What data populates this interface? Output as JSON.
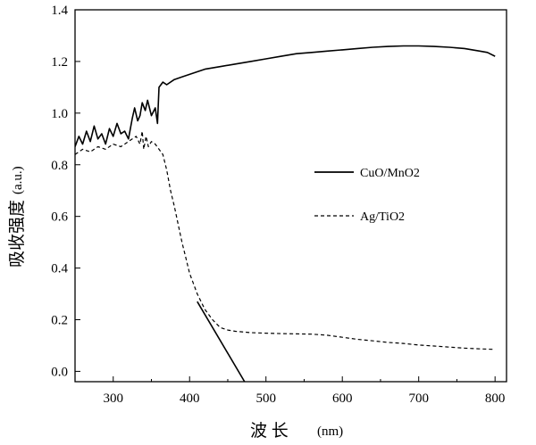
{
  "chart_data": {
    "type": "line",
    "xlabel": "波 长",
    "xlabel_unit": "(nm)",
    "ylabel": "吸收强度",
    "ylabel_unit": "(a.u.)",
    "xlim": [
      250,
      815
    ],
    "ylim": [
      -0.04,
      1.4
    ],
    "xticks": [
      300,
      400,
      500,
      600,
      700,
      800
    ],
    "yticks": [
      "0.0",
      "0.2",
      "0.4",
      "0.6",
      "0.8",
      "1.0",
      "1.2",
      "1.4"
    ],
    "grid": false,
    "legend_position": "right-middle",
    "series": [
      {
        "name": "CuO/MnO2",
        "line_style": "solid",
        "color": "#000000",
        "x": [
          250,
          255,
          260,
          265,
          270,
          275,
          280,
          285,
          290,
          295,
          300,
          305,
          310,
          315,
          320,
          325,
          328,
          332,
          335,
          338,
          342,
          345,
          350,
          355,
          358,
          360,
          365,
          370,
          380,
          390,
          400,
          420,
          440,
          460,
          480,
          500,
          520,
          540,
          560,
          580,
          600,
          620,
          640,
          660,
          680,
          700,
          720,
          740,
          760,
          780,
          790,
          800
        ],
        "y": [
          0.87,
          0.91,
          0.88,
          0.93,
          0.89,
          0.95,
          0.9,
          0.92,
          0.88,
          0.94,
          0.91,
          0.96,
          0.92,
          0.93,
          0.9,
          0.98,
          1.02,
          0.97,
          0.99,
          1.04,
          1.01,
          1.05,
          0.99,
          1.02,
          0.96,
          1.1,
          1.12,
          1.11,
          1.13,
          1.14,
          1.15,
          1.17,
          1.18,
          1.19,
          1.2,
          1.21,
          1.22,
          1.23,
          1.235,
          1.24,
          1.245,
          1.25,
          1.255,
          1.258,
          1.26,
          1.26,
          1.258,
          1.255,
          1.25,
          1.24,
          1.235,
          1.22
        ]
      },
      {
        "name": "Ag/TiO2",
        "line_style": "dashed",
        "color": "#000000",
        "x": [
          250,
          260,
          270,
          280,
          290,
          300,
          310,
          320,
          325,
          330,
          335,
          338,
          340,
          343,
          346,
          350,
          355,
          360,
          365,
          370,
          375,
          380,
          385,
          390,
          395,
          400,
          410,
          420,
          430,
          440,
          450,
          460,
          480,
          500,
          520,
          540,
          560,
          580,
          600,
          620,
          640,
          660,
          680,
          700,
          720,
          740,
          760,
          780,
          800
        ],
        "y": [
          0.84,
          0.86,
          0.85,
          0.87,
          0.86,
          0.88,
          0.87,
          0.89,
          0.9,
          0.91,
          0.88,
          0.93,
          0.86,
          0.91,
          0.87,
          0.89,
          0.88,
          0.86,
          0.84,
          0.78,
          0.7,
          0.64,
          0.57,
          0.5,
          0.44,
          0.38,
          0.3,
          0.24,
          0.2,
          0.17,
          0.16,
          0.155,
          0.15,
          0.148,
          0.146,
          0.145,
          0.144,
          0.14,
          0.132,
          0.124,
          0.118,
          0.112,
          0.108,
          0.102,
          0.098,
          0.094,
          0.09,
          0.087,
          0.085
        ]
      },
      {
        "line_style": "solid",
        "color": "#000000",
        "x": [
          410,
          472
        ],
        "y": [
          0.27,
          -0.04
        ]
      }
    ]
  }
}
